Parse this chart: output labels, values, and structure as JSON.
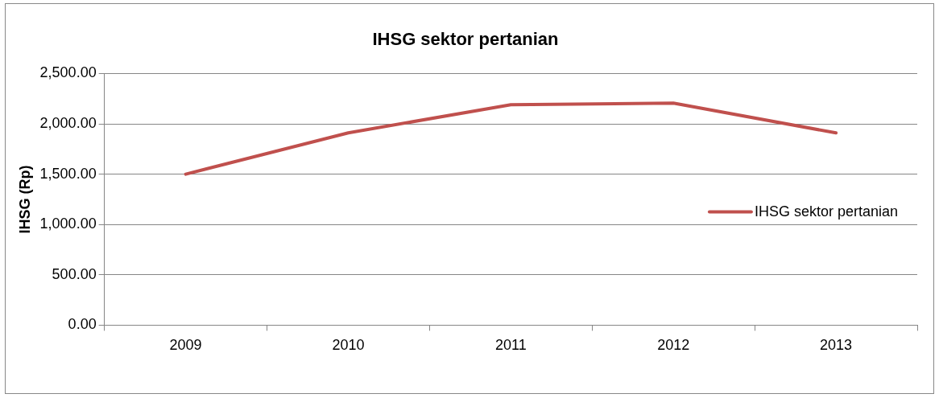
{
  "chart_data": {
    "type": "line",
    "title": "IHSG sektor pertanian",
    "ylabel": "IHSG (Rp)",
    "categories": [
      "2009",
      "2010",
      "2011",
      "2012",
      "2013"
    ],
    "series": [
      {
        "name": "IHSG sektor pertanian",
        "color": "#c0504d",
        "values": [
          1500,
          1910,
          2190,
          2205,
          1910
        ]
      }
    ],
    "ylim": [
      0,
      2500
    ],
    "yticks": [
      {
        "value": 0,
        "label": "0.00"
      },
      {
        "value": 500,
        "label": "500.00"
      },
      {
        "value": 1000,
        "label": "1,000.00"
      },
      {
        "value": 1500,
        "label": "1,500.00"
      },
      {
        "value": 2000,
        "label": "2,000.00"
      },
      {
        "value": 2500,
        "label": "2,500.00"
      }
    ],
    "grid": "y",
    "legend": "right",
    "marker": "none",
    "line_style": "solid"
  }
}
